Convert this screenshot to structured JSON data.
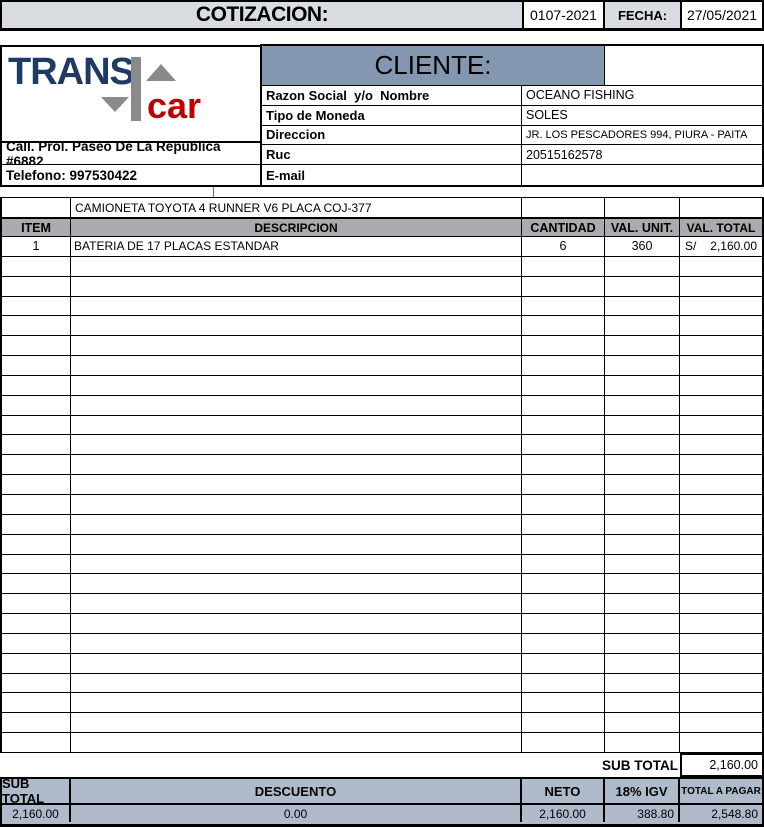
{
  "title_bar": {
    "title": "COTIZACION:",
    "quote_number": "0107-2021",
    "fecha_label": "FECHA:",
    "fecha_value": "27/05/2021"
  },
  "company": {
    "logo_trans": "TRANS",
    "logo_car": "car",
    "address": "Call. Prol. Paseo De La Republica #6882",
    "phone": "Telefono: 997530422"
  },
  "client": {
    "header": "CLIENTE:",
    "rows": [
      {
        "label": "Razon Social  y/o  Nombre",
        "value": "OCEANO FISHING"
      },
      {
        "label": "Tipo de Moneda",
        "value": "SOLES"
      },
      {
        "label": "Direccion",
        "value": "JR. LOS PESCADORES 994, PIURA - PAITA"
      },
      {
        "label": "Ruc",
        "value": "20515162578"
      },
      {
        "label": "E-mail",
        "value": ""
      }
    ]
  },
  "items": {
    "vehicle_note": "CAMIONETA TOYOTA 4 RUNNER V6 PLACA COJ-377",
    "columns": [
      "ITEM",
      "DESCRIPCION",
      "CANTIDAD",
      "VAL. UNIT.",
      "VAL. TOTAL"
    ],
    "row": {
      "item": "1",
      "description": "BATERIA DE 17 PLACAS ESTANDAR",
      "cantidad": "6",
      "val_unit": "360",
      "currency": "S/",
      "val_total": "2,160.00"
    },
    "empty_row_count": 25
  },
  "subtotal": {
    "label": "SUB TOTAL",
    "value": "2,160.00"
  },
  "footer": {
    "headers": [
      "SUB TOTAL",
      "DESCUENTO",
      "NETO",
      "18% IGV",
      "TOTAL A PAGAR"
    ],
    "values": [
      "2,160.00",
      "0.00",
      "2,160.00",
      "388.80",
      "2,548.80"
    ]
  },
  "colors": {
    "title_bg": "#D9DCE0",
    "client_header_bg": "#8497B0",
    "table_header_bg": "#A9ABAE",
    "footer_bg": "#AFBACB",
    "logo_navy": "#1F3B63",
    "logo_red": "#C00000",
    "logo_gray": "#8A8A8A"
  }
}
